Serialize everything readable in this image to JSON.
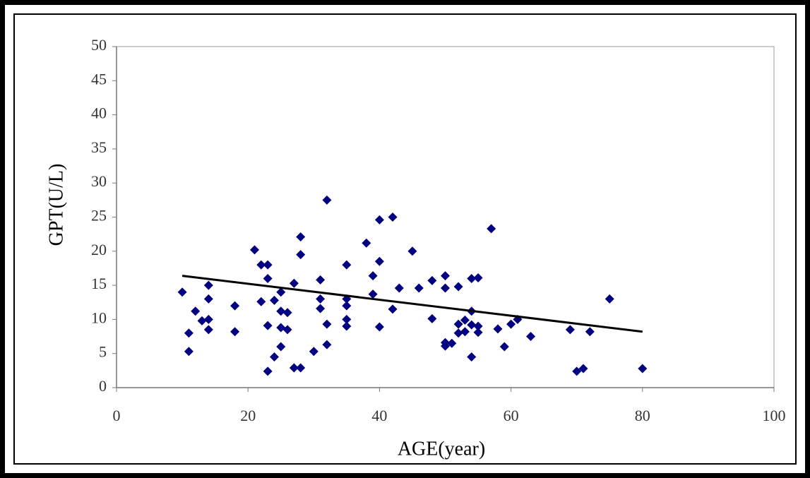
{
  "chart_data": {
    "type": "scatter",
    "x_label": "AGE(year)",
    "y_label": "GPT(U/L)",
    "color": "#000080",
    "x": [
      10,
      11,
      11,
      12,
      13,
      14,
      14,
      14,
      14,
      18,
      18,
      21,
      22,
      22,
      23,
      23,
      23,
      23,
      24,
      24,
      25,
      25,
      25,
      25,
      26,
      26,
      27,
      27,
      28,
      28,
      28,
      30,
      31,
      31,
      31,
      32,
      32,
      32,
      35,
      35,
      35,
      35,
      35,
      38,
      39,
      39,
      40,
      40,
      40,
      42,
      42,
      43,
      45,
      46,
      48,
      48,
      50,
      50,
      50,
      50,
      51,
      52,
      52,
      52,
      53,
      53,
      54,
      54,
      54,
      54,
      55,
      55,
      55,
      57,
      58,
      59,
      60,
      61,
      63,
      69,
      70,
      71,
      72,
      75,
      80
    ],
    "values": [
      14,
      8,
      5.3,
      11.2,
      9.8,
      15,
      13,
      10,
      8.5,
      12,
      8.2,
      20.2,
      12.6,
      18,
      18,
      16,
      9.1,
      2.4,
      12.8,
      4.5,
      14,
      11.2,
      8.8,
      6,
      11,
      8.5,
      15.3,
      2.9,
      22.1,
      19.5,
      2.9,
      5.3,
      15.8,
      13,
      11.6,
      27.5,
      9.3,
      6.3,
      18,
      13,
      12,
      10,
      9,
      21.2,
      16.4,
      13.7,
      24.6,
      18.5,
      8.9,
      25,
      11.5,
      14.6,
      20,
      14.6,
      15.7,
      10.1,
      16.4,
      14.6,
      6.6,
      6.1,
      6.5,
      14.8,
      9.3,
      8,
      9.9,
      8.2,
      16,
      11.2,
      9.2,
      4.5,
      16.1,
      9,
      8.1,
      23.3,
      8.6,
      6,
      9.3,
      10,
      7.5,
      8.5,
      2.4,
      2.8,
      8.2,
      13,
      2.8
    ],
    "trendline": {
      "x": [
        10,
        80
      ],
      "y": [
        16.4,
        8.2
      ],
      "color": "#000000"
    },
    "xlim": [
      0,
      100
    ],
    "xticks": [
      0,
      20,
      40,
      60,
      80,
      100
    ],
    "ylim": [
      0,
      50
    ],
    "yticks": [
      0,
      5,
      10,
      15,
      20,
      25,
      30,
      35,
      40,
      45,
      50
    ]
  }
}
